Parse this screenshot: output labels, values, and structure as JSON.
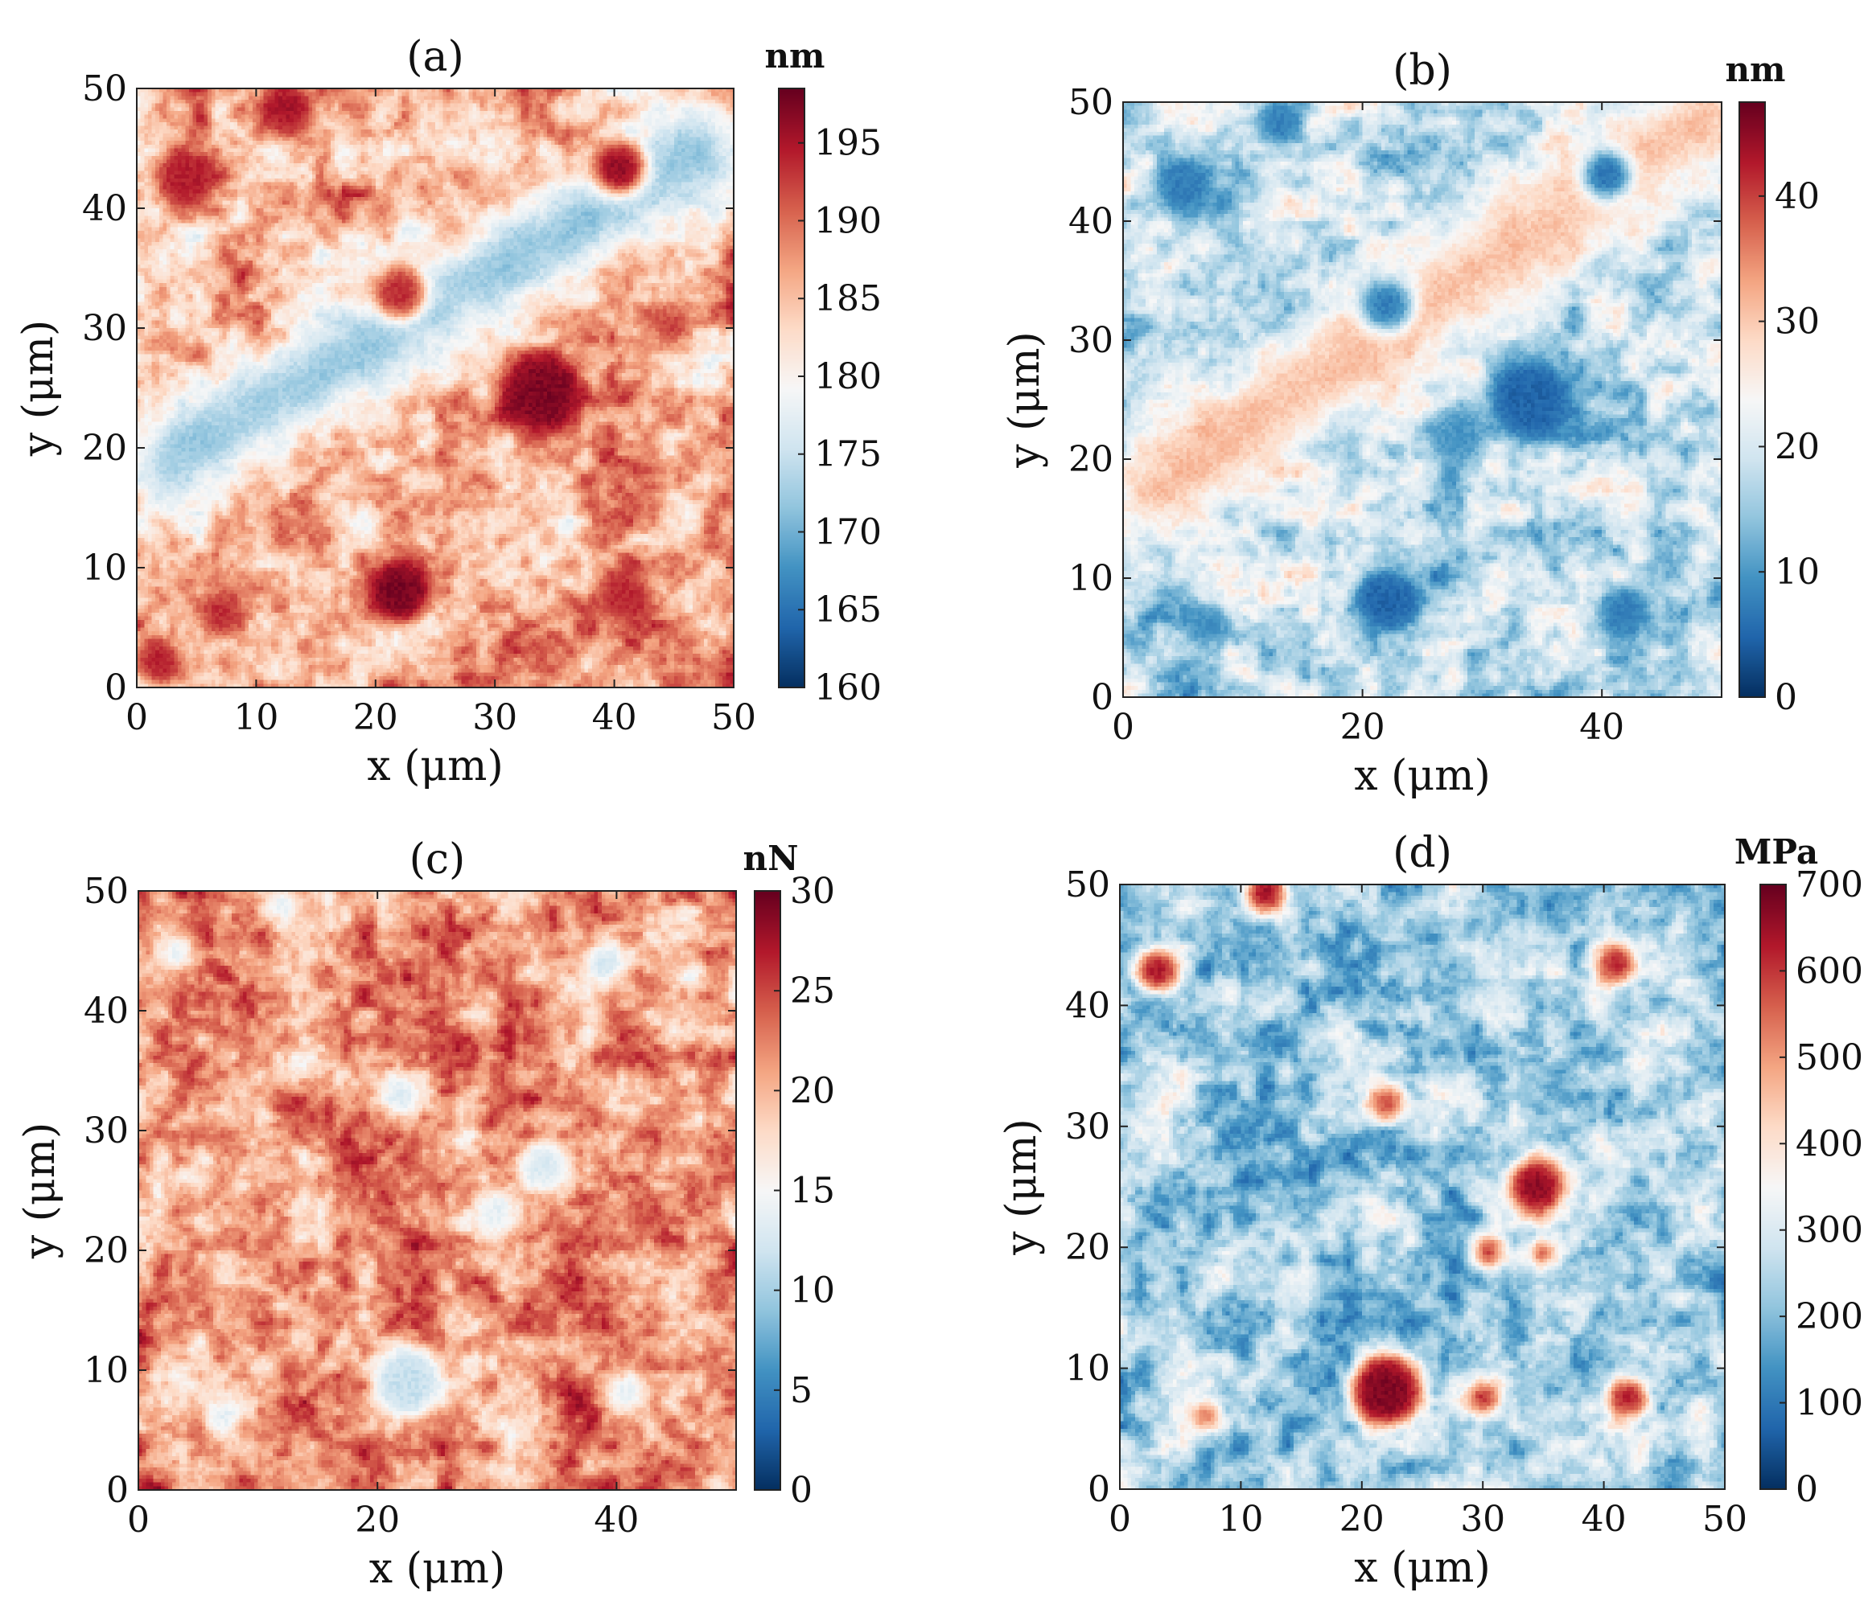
{
  "figure": {
    "panels_order": [
      "a",
      "b",
      "c",
      "d"
    ]
  },
  "chart_data": [
    {
      "id": "a",
      "type": "heatmap",
      "title": "(a)",
      "xlabel": "x (μm)",
      "ylabel": "y (μm)",
      "xlim": [
        0,
        50
      ],
      "ylim": [
        0,
        50
      ],
      "xticks": [
        "0",
        "10",
        "20",
        "30",
        "40",
        "50"
      ],
      "xtick_values": [
        0,
        10,
        20,
        30,
        40,
        50
      ],
      "yticks": [
        "0",
        "10",
        "20",
        "30",
        "40",
        "50"
      ],
      "ytick_values": [
        0,
        10,
        20,
        30,
        40,
        50
      ],
      "colorbar": {
        "unit": "nm",
        "range": [
          160,
          198.5
        ],
        "ticks": [
          "160",
          "165",
          "170",
          "175",
          "180",
          "185",
          "190",
          "195"
        ],
        "tick_values": [
          160,
          165,
          170,
          175,
          180,
          185,
          190,
          195
        ]
      },
      "colormap": "RdBu_r",
      "base_level": 0.68,
      "features": [
        {
          "x": 22,
          "y": 8,
          "r": 2.8,
          "level": 0.98
        },
        {
          "x": 34,
          "y": 24.5,
          "r": 3.5,
          "level": 0.97
        },
        {
          "x": 22,
          "y": 33,
          "r": 2.2,
          "level": 0.88
        },
        {
          "x": 40.5,
          "y": 43.5,
          "r": 2.2,
          "level": 0.95
        },
        {
          "x": 12.5,
          "y": 48.5,
          "r": 2.2,
          "level": 0.92
        },
        {
          "x": 4,
          "y": 42.5,
          "r": 2.5,
          "level": 0.9
        },
        {
          "x": 41,
          "y": 7.5,
          "r": 2.2,
          "level": 0.88
        },
        {
          "x": 7,
          "y": 6,
          "r": 1.8,
          "level": 0.88
        },
        {
          "x": 2,
          "y": 2,
          "r": 1.6,
          "level": 0.9
        },
        {
          "x": 45,
          "y": 30,
          "r": 1.5,
          "level": 0.86
        }
      ],
      "bands": [
        {
          "x0": 3,
          "y0": 19,
          "x1": 47,
          "y1": 45,
          "width": 3.0,
          "level": 0.25
        }
      ]
    },
    {
      "id": "b",
      "type": "heatmap",
      "title": "(b)",
      "xlabel": "x (μm)",
      "ylabel": "y (μm)",
      "xlim": [
        0,
        50
      ],
      "ylim": [
        0,
        50
      ],
      "xticks": [
        "0",
        "20",
        "40"
      ],
      "xtick_values": [
        0,
        20,
        40
      ],
      "yticks": [
        "0",
        "10",
        "20",
        "30",
        "40",
        "50"
      ],
      "ytick_values": [
        0,
        10,
        20,
        30,
        40,
        50
      ],
      "colorbar": {
        "unit": "nm",
        "range": [
          0,
          47.5
        ],
        "ticks": [
          "0",
          "10",
          "20",
          "30",
          "40"
        ],
        "tick_values": [
          0,
          10,
          20,
          30,
          40
        ]
      },
      "colormap": "RdBu_r",
      "base_level": 0.38,
      "features": [
        {
          "x": 22,
          "y": 8,
          "r": 2.8,
          "level": 0.1
        },
        {
          "x": 34,
          "y": 25,
          "r": 3.5,
          "level": 0.1
        },
        {
          "x": 5,
          "y": 43,
          "r": 2.5,
          "level": 0.15
        },
        {
          "x": 13,
          "y": 48.5,
          "r": 2.0,
          "level": 0.15
        },
        {
          "x": 40.5,
          "y": 44,
          "r": 2.0,
          "level": 0.12
        },
        {
          "x": 22,
          "y": 33,
          "r": 2.2,
          "level": 0.15
        },
        {
          "x": 42,
          "y": 7,
          "r": 2.2,
          "level": 0.15
        },
        {
          "x": 7,
          "y": 6,
          "r": 1.8,
          "level": 0.18
        },
        {
          "x": 28,
          "y": 22,
          "r": 2.5,
          "level": 0.2
        }
      ],
      "bands": [
        {
          "x0": 3,
          "y0": 18,
          "x1": 49,
          "y1": 49,
          "width": 3.2,
          "level": 0.7
        }
      ]
    },
    {
      "id": "c",
      "type": "heatmap",
      "title": "(c)",
      "xlabel": "x (μm)",
      "ylabel": "y (μm)",
      "xlim": [
        0,
        50
      ],
      "ylim": [
        0,
        50
      ],
      "xticks": [
        "0",
        "20",
        "40"
      ],
      "xtick_values": [
        0,
        20,
        40
      ],
      "yticks": [
        "0",
        "10",
        "20",
        "30",
        "40",
        "50"
      ],
      "ytick_values": [
        0,
        10,
        20,
        30,
        40,
        50
      ],
      "colorbar": {
        "unit": "nN",
        "range": [
          0,
          30
        ],
        "ticks": [
          "0",
          "5",
          "10",
          "15",
          "20",
          "25",
          "30"
        ],
        "tick_values": [
          0,
          5,
          10,
          15,
          20,
          25,
          30
        ]
      },
      "colormap": "RdBu_r",
      "base_level": 0.72,
      "features": [
        {
          "x": 22.5,
          "y": 9,
          "r": 3.0,
          "level": 0.38
        },
        {
          "x": 34,
          "y": 27,
          "r": 2.2,
          "level": 0.42
        },
        {
          "x": 30,
          "y": 23,
          "r": 1.8,
          "level": 0.45
        },
        {
          "x": 22,
          "y": 33,
          "r": 1.6,
          "level": 0.42
        },
        {
          "x": 39,
          "y": 44,
          "r": 1.6,
          "level": 0.4
        },
        {
          "x": 3,
          "y": 45,
          "r": 1.4,
          "level": 0.45
        },
        {
          "x": 7,
          "y": 6,
          "r": 1.4,
          "level": 0.45
        },
        {
          "x": 41,
          "y": 8,
          "r": 1.4,
          "level": 0.45
        },
        {
          "x": 12,
          "y": 49,
          "r": 1.2,
          "level": 0.45
        }
      ],
      "bands": []
    },
    {
      "id": "d",
      "type": "heatmap",
      "title": "(d)",
      "xlabel": "x (μm)",
      "ylabel": "y (μm)",
      "xlim": [
        0,
        50
      ],
      "ylim": [
        0,
        50
      ],
      "xticks": [
        "0",
        "10",
        "20",
        "30",
        "40",
        "50"
      ],
      "xtick_values": [
        0,
        10,
        20,
        30,
        40,
        50
      ],
      "yticks": [
        "0",
        "10",
        "20",
        "30",
        "40",
        "50"
      ],
      "ytick_values": [
        0,
        10,
        20,
        30,
        40,
        50
      ],
      "colorbar": {
        "unit": "MPa",
        "range": [
          0,
          700
        ],
        "ticks": [
          "0",
          "100",
          "200",
          "300",
          "400",
          "500",
          "600",
          "700"
        ],
        "tick_values": [
          0,
          100,
          200,
          300,
          400,
          500,
          600,
          700
        ]
      },
      "colormap": "RdBu_r",
      "base_level": 0.33,
      "features": [
        {
          "x": 22,
          "y": 8,
          "r": 3.0,
          "level": 0.97
        },
        {
          "x": 34.5,
          "y": 25,
          "r": 2.4,
          "level": 0.95
        },
        {
          "x": 3,
          "y": 43,
          "r": 1.8,
          "level": 0.93
        },
        {
          "x": 12,
          "y": 49.5,
          "r": 1.6,
          "level": 0.95
        },
        {
          "x": 41,
          "y": 43.5,
          "r": 1.6,
          "level": 0.9
        },
        {
          "x": 42,
          "y": 7.5,
          "r": 1.6,
          "level": 0.92
        },
        {
          "x": 30,
          "y": 7.5,
          "r": 1.2,
          "level": 0.9
        },
        {
          "x": 22,
          "y": 32,
          "r": 1.4,
          "level": 0.85
        },
        {
          "x": 30.5,
          "y": 19.5,
          "r": 1.2,
          "level": 0.88
        },
        {
          "x": 35,
          "y": 19.5,
          "r": 1.0,
          "level": 0.85
        },
        {
          "x": 7,
          "y": 6,
          "r": 1.1,
          "level": 0.8
        }
      ],
      "bands": []
    }
  ]
}
